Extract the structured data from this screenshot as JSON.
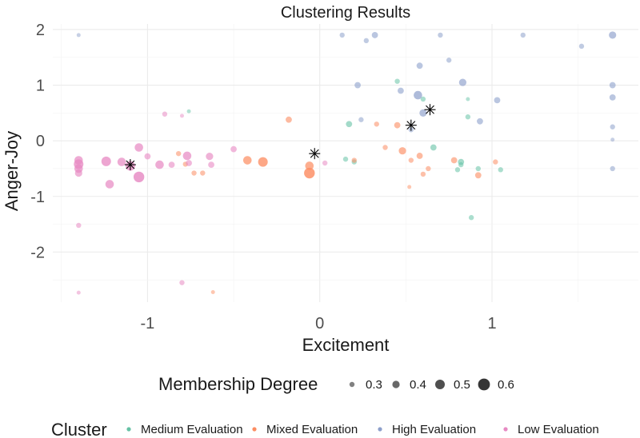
{
  "chart_data": {
    "type": "scatter",
    "title": "Clustering Results",
    "xlabel": "Excitement",
    "ylabel": "Anger-Joy",
    "xlim": [
      -1.55,
      1.85
    ],
    "ylim": [
      -2.9,
      2.1
    ],
    "x_ticks": [
      -1,
      0,
      1
    ],
    "x_tick_labels": [
      "-1",
      "0",
      "1"
    ],
    "y_ticks": [
      -2,
      -1,
      0,
      1,
      2
    ],
    "y_tick_labels": [
      "-2",
      "-1",
      "0",
      "1",
      "2"
    ],
    "grid": true,
    "size_legend": {
      "title": "Membership Degree",
      "placement": "bottom",
      "levels": [
        {
          "label": "0.3",
          "value": 0.3
        },
        {
          "label": "0.4",
          "value": 0.4
        },
        {
          "label": "0.5",
          "value": 0.5
        },
        {
          "label": "0.6",
          "value": 0.6
        }
      ]
    },
    "color_legend": {
      "title": "Cluster",
      "placement": "bottom"
    },
    "series": [
      {
        "name": "Medium Evaluation",
        "color": "#66c2a5",
        "points": [
          {
            "x": -0.76,
            "y": 0.53,
            "m": 0.25
          },
          {
            "x": 0.15,
            "y": -0.33,
            "m": 0.3
          },
          {
            "x": 0.17,
            "y": 0.3,
            "m": 0.35
          },
          {
            "x": 0.2,
            "y": -0.38,
            "m": 0.3
          },
          {
            "x": 0.45,
            "y": 1.07,
            "m": 0.3
          },
          {
            "x": 0.6,
            "y": 0.75,
            "m": 0.3
          },
          {
            "x": 0.66,
            "y": -0.12,
            "m": 0.35
          },
          {
            "x": 0.8,
            "y": -0.52,
            "m": 0.3
          },
          {
            "x": 0.82,
            "y": -0.38,
            "m": 0.35
          },
          {
            "x": 0.82,
            "y": -0.43,
            "m": 0.3
          },
          {
            "x": 0.86,
            "y": 0.75,
            "m": 0.25
          },
          {
            "x": 0.86,
            "y": 0.43,
            "m": 0.3
          },
          {
            "x": 0.88,
            "y": -1.38,
            "m": 0.3
          },
          {
            "x": 0.92,
            "y": -0.5,
            "m": 0.3
          },
          {
            "x": 1.05,
            "y": -0.52,
            "m": 0.3
          }
        ]
      },
      {
        "name": "Mixed Evaluation",
        "color": "#fc8d62",
        "points": [
          {
            "x": -0.82,
            "y": -0.23,
            "m": 0.3
          },
          {
            "x": -0.78,
            "y": -0.42,
            "m": 0.3
          },
          {
            "x": -0.73,
            "y": -0.58,
            "m": 0.3
          },
          {
            "x": -0.68,
            "y": -0.58,
            "m": 0.3
          },
          {
            "x": -0.62,
            "y": -2.72,
            "m": 0.25
          },
          {
            "x": -0.42,
            "y": -0.35,
            "m": 0.45
          },
          {
            "x": -0.33,
            "y": -0.38,
            "m": 0.5
          },
          {
            "x": -0.18,
            "y": 0.38,
            "m": 0.35
          },
          {
            "x": -0.06,
            "y": -0.45,
            "m": 0.45
          },
          {
            "x": -0.06,
            "y": -0.58,
            "m": 0.55
          },
          {
            "x": 0.2,
            "y": -0.35,
            "m": 0.3
          },
          {
            "x": 0.33,
            "y": 0.3,
            "m": 0.3
          },
          {
            "x": 0.38,
            "y": -0.12,
            "m": 0.3
          },
          {
            "x": 0.45,
            "y": 0.28,
            "m": 0.35
          },
          {
            "x": 0.48,
            "y": -0.18,
            "m": 0.4
          },
          {
            "x": 0.52,
            "y": -0.83,
            "m": 0.25
          },
          {
            "x": 0.53,
            "y": -0.35,
            "m": 0.3
          },
          {
            "x": 0.58,
            "y": -0.27,
            "m": 0.35
          },
          {
            "x": 0.6,
            "y": -0.6,
            "m": 0.3
          },
          {
            "x": 0.63,
            "y": -0.5,
            "m": 0.3
          },
          {
            "x": 0.78,
            "y": -0.35,
            "m": 0.35
          },
          {
            "x": 0.92,
            "y": -0.62,
            "m": 0.35
          },
          {
            "x": 1.02,
            "y": -0.38,
            "m": 0.3
          }
        ]
      },
      {
        "name": "High Evaluation",
        "color": "#8da0cb",
        "points": [
          {
            "x": -1.4,
            "y": 1.9,
            "m": 0.25
          },
          {
            "x": 0.13,
            "y": 1.9,
            "m": 0.3
          },
          {
            "x": 0.22,
            "y": 1.0,
            "m": 0.35
          },
          {
            "x": 0.24,
            "y": 0.38,
            "m": 0.3
          },
          {
            "x": 0.27,
            "y": 1.8,
            "m": 0.3
          },
          {
            "x": 0.32,
            "y": 1.9,
            "m": 0.35
          },
          {
            "x": 0.47,
            "y": 0.9,
            "m": 0.35
          },
          {
            "x": 0.53,
            "y": 0.2,
            "m": 0.3
          },
          {
            "x": 0.57,
            "y": 0.82,
            "m": 0.45
          },
          {
            "x": 0.58,
            "y": 1.35,
            "m": 0.35
          },
          {
            "x": 0.6,
            "y": 0.5,
            "m": 0.4
          },
          {
            "x": 0.7,
            "y": 1.9,
            "m": 0.3
          },
          {
            "x": 0.75,
            "y": 1.45,
            "m": 0.3
          },
          {
            "x": 0.83,
            "y": 1.05,
            "m": 0.4
          },
          {
            "x": 0.93,
            "y": 0.35,
            "m": 0.35
          },
          {
            "x": 1.03,
            "y": 0.73,
            "m": 0.35
          },
          {
            "x": 1.18,
            "y": 1.9,
            "m": 0.3
          },
          {
            "x": 1.52,
            "y": 1.7,
            "m": 0.3
          },
          {
            "x": 1.7,
            "y": 1.9,
            "m": 0.4
          },
          {
            "x": 1.7,
            "y": 1.0,
            "m": 0.35
          },
          {
            "x": 1.7,
            "y": 0.78,
            "m": 0.35
          },
          {
            "x": 1.7,
            "y": 0.25,
            "m": 0.3
          },
          {
            "x": 1.7,
            "y": 0.02,
            "m": 0.25
          },
          {
            "x": 1.7,
            "y": -0.5,
            "m": 0.3
          }
        ]
      },
      {
        "name": "Low Evaluation",
        "color": "#e78ac3",
        "points": [
          {
            "x": -1.4,
            "y": -0.35,
            "m": 0.45
          },
          {
            "x": -1.4,
            "y": -0.42,
            "m": 0.5
          },
          {
            "x": -1.4,
            "y": -0.5,
            "m": 0.45
          },
          {
            "x": -1.4,
            "y": -0.58,
            "m": 0.4
          },
          {
            "x": -1.4,
            "y": -1.52,
            "m": 0.3
          },
          {
            "x": -1.4,
            "y": -2.73,
            "m": 0.25
          },
          {
            "x": -1.24,
            "y": -0.37,
            "m": 0.5
          },
          {
            "x": -1.22,
            "y": -0.78,
            "m": 0.45
          },
          {
            "x": -1.15,
            "y": -0.38,
            "m": 0.45
          },
          {
            "x": -1.1,
            "y": -0.45,
            "m": 0.5
          },
          {
            "x": -1.05,
            "y": -0.12,
            "m": 0.45
          },
          {
            "x": -1.05,
            "y": -0.65,
            "m": 0.55
          },
          {
            "x": -1.0,
            "y": -0.28,
            "m": 0.35
          },
          {
            "x": -0.93,
            "y": -0.43,
            "m": 0.45
          },
          {
            "x": -0.9,
            "y": 0.48,
            "m": 0.3
          },
          {
            "x": -0.86,
            "y": -0.43,
            "m": 0.35
          },
          {
            "x": -0.8,
            "y": 0.45,
            "m": 0.25
          },
          {
            "x": -0.77,
            "y": -0.27,
            "m": 0.45
          },
          {
            "x": -0.76,
            "y": -0.4,
            "m": 0.35
          },
          {
            "x": -0.64,
            "y": -0.28,
            "m": 0.4
          },
          {
            "x": -0.63,
            "y": -0.43,
            "m": 0.35
          },
          {
            "x": -0.5,
            "y": -0.15,
            "m": 0.35
          },
          {
            "x": -0.8,
            "y": -2.55,
            "m": 0.3
          },
          {
            "x": 0.03,
            "y": -0.4,
            "m": 0.3
          }
        ]
      }
    ],
    "centroids": [
      {
        "x": -1.1,
        "y": -0.43
      },
      {
        "x": -0.03,
        "y": -0.23
      },
      {
        "x": 0.53,
        "y": 0.28
      },
      {
        "x": 0.64,
        "y": 0.56
      }
    ]
  }
}
